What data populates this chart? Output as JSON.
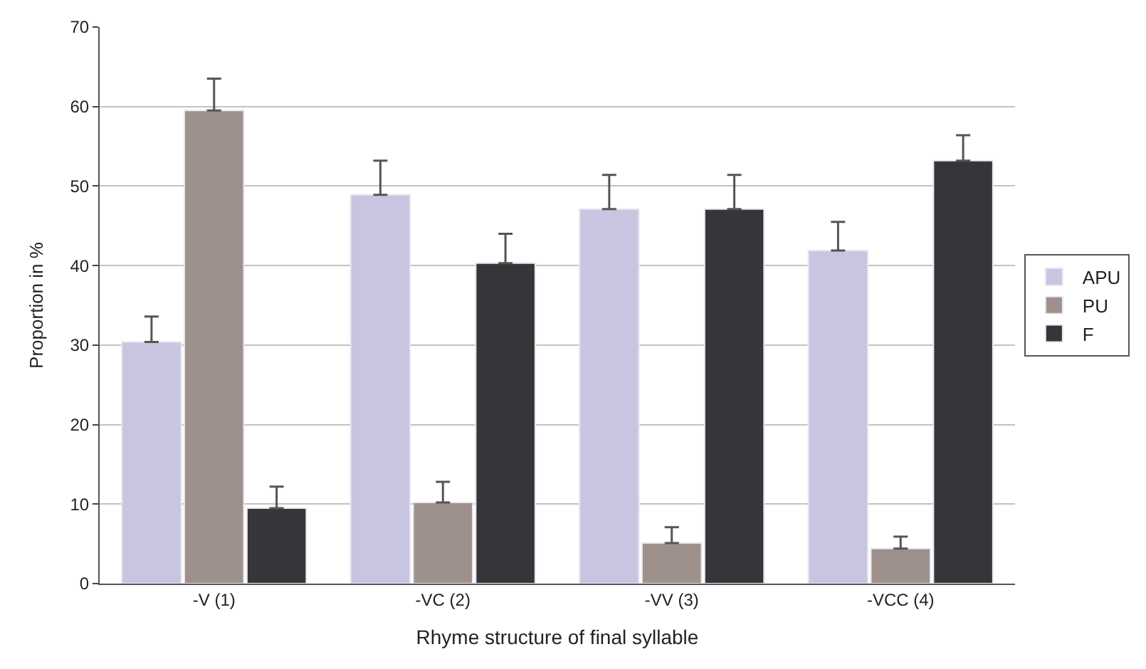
{
  "chart_data": {
    "type": "bar",
    "xlabel": "Rhyme structure of final syllable",
    "ylabel": "Proportion in %",
    "categories": [
      "-V (1)",
      "-VC (2)",
      "-VV (3)",
      "-VCC (4)"
    ],
    "series": [
      {
        "name": "APU",
        "color": "#c7c5e0",
        "values": [
          30.4,
          48.9,
          47.1,
          41.9
        ],
        "errors": [
          [
            30.4,
            33.6
          ],
          [
            48.9,
            53.2
          ],
          [
            47.1,
            51.4
          ],
          [
            41.9,
            45.5
          ]
        ]
      },
      {
        "name": "PU",
        "color": "#9e918c",
        "values": [
          59.5,
          10.2,
          5.1,
          4.4
        ],
        "errors": [
          [
            59.5,
            63.5
          ],
          [
            10.2,
            12.8
          ],
          [
            5.1,
            7.1
          ],
          [
            4.4,
            5.9
          ]
        ]
      },
      {
        "name": "F",
        "color": "#363539",
        "values": [
          9.5,
          40.3,
          47.1,
          53.2
        ],
        "errors": [
          [
            9.5,
            12.2
          ],
          [
            40.3,
            44.0
          ],
          [
            47.1,
            51.4
          ],
          [
            53.2,
            56.4
          ]
        ]
      }
    ],
    "ylim": [
      0,
      70
    ],
    "yticks": [
      0,
      10,
      20,
      30,
      40,
      50,
      60,
      70
    ],
    "grid": "y",
    "legend": "right"
  }
}
